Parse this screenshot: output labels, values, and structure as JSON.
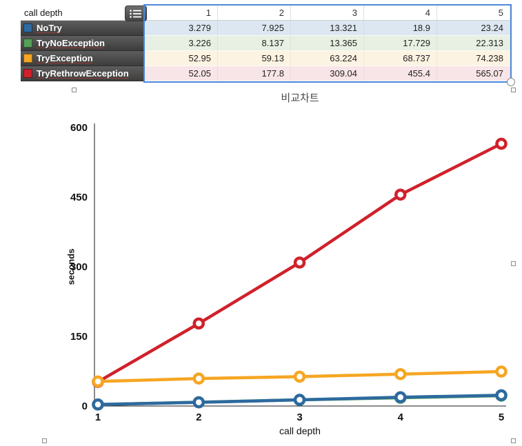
{
  "table": {
    "corner_label": "call depth",
    "columns": [
      "1",
      "2",
      "3",
      "4",
      "5"
    ],
    "rows": [
      {
        "label": "NoTry",
        "color": "#2d6a9f",
        "tint": "#dde7f1",
        "values": [
          "3.279",
          "7.925",
          "13.321",
          "18.9",
          "23.24"
        ]
      },
      {
        "label": "TryNoException",
        "color": "#55a055",
        "tint": "#e7f0e2",
        "values": [
          "3.226",
          "8.137",
          "13.365",
          "17.729",
          "22.313"
        ]
      },
      {
        "label": "TryException",
        "color": "#f6a623",
        "tint": "#fdf3e2",
        "values": [
          "52.95",
          "59.13",
          "63.224",
          "68.737",
          "74.238"
        ]
      },
      {
        "label": "TryRethrowException",
        "color": "#d0212b",
        "tint": "#f8e5e7",
        "values": [
          "52.05",
          "177.8",
          "309.04",
          "455.4",
          "565.07"
        ]
      }
    ]
  },
  "icons": {
    "table_options": "list-icon"
  },
  "selection_color": "#4a89dc",
  "chart_data": {
    "type": "line",
    "title": "비교차트",
    "xlabel": "call depth",
    "ylabel": "seconds",
    "x": [
      1,
      2,
      3,
      4,
      5
    ],
    "ylim": [
      0,
      600
    ],
    "yticks": [
      0,
      150,
      300,
      450,
      600
    ],
    "legend": "none",
    "grid": false,
    "series": [
      {
        "name": "NoTry",
        "color": "#2d6a9f",
        "values": [
          3.279,
          7.925,
          13.321,
          18.9,
          23.24
        ]
      },
      {
        "name": "TryNoException",
        "color": "#55a055",
        "values": [
          3.226,
          8.137,
          13.365,
          17.729,
          22.313
        ]
      },
      {
        "name": "TryException",
        "color": "#f6a623",
        "values": [
          52.95,
          59.13,
          63.224,
          68.737,
          74.238
        ]
      },
      {
        "name": "TryRethrowException",
        "color": "#d0212b",
        "values": [
          52.05,
          177.8,
          309.04,
          455.4,
          565.07
        ]
      }
    ]
  }
}
